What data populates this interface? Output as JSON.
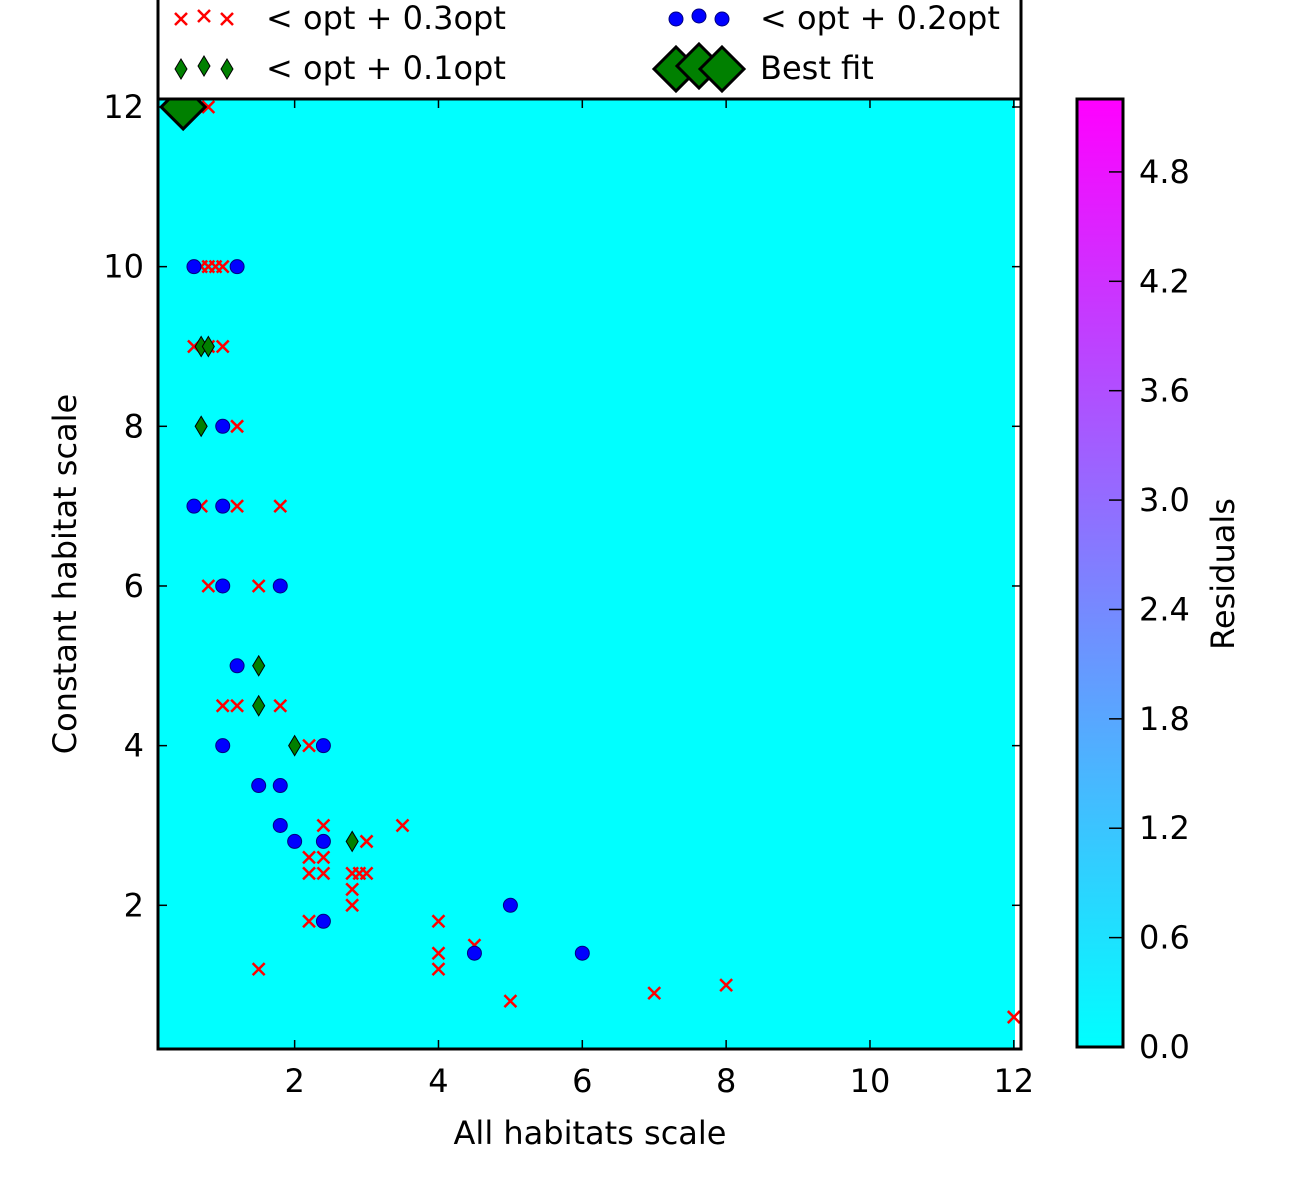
{
  "chart_data": {
    "type": "scatter",
    "title": "",
    "xlabel": "All habitats scale",
    "ylabel": "Constant habitat scale",
    "xlim": [
      0.1,
      12.1
    ],
    "ylim": [
      0.2,
      12.1
    ],
    "xticks": [
      "2",
      "4",
      "6",
      "8",
      "10",
      "12"
    ],
    "yticks": [
      "2",
      "4",
      "6",
      "8",
      "10",
      "12"
    ],
    "background_color": "#00ffff",
    "grid": false,
    "legend": {
      "placement": "top",
      "entries": [
        {
          "label": "< opt + 0.3opt",
          "marker": "x",
          "color": "#ff0000"
        },
        {
          "label": "< opt + 0.2opt",
          "marker": "circle",
          "color": "#0000ff"
        },
        {
          "label": "< opt + 0.1opt",
          "marker": "thin-diamond",
          "color": "#008000"
        },
        {
          "label": "Best fit",
          "marker": "diamond",
          "color": "#008000"
        }
      ]
    },
    "colorbar": {
      "label": "Residuals",
      "range": [
        0.0,
        5.2
      ],
      "ticks": [
        "0.0",
        "0.6",
        "1.2",
        "1.8",
        "2.4",
        "3.0",
        "3.6",
        "4.2",
        "4.8"
      ],
      "colormap": [
        "#00ffff",
        "#ff00ff"
      ]
    },
    "series": [
      {
        "name": "< opt + 0.3opt",
        "marker": "x",
        "color": "#ff0000",
        "x": [
          0.35,
          0.8,
          0.7,
          0.8,
          0.9,
          1.0,
          0.6,
          1.0,
          0.8,
          1.2,
          0.7,
          1.2,
          1.8,
          0.8,
          1.5,
          1.0,
          1.2,
          1.8,
          2.2,
          2.4,
          2.2,
          2.4,
          2.2,
          2.4,
          2.8,
          2.9,
          3.0,
          2.8,
          2.8,
          3.0,
          3.5,
          2.2,
          4.0,
          4.0,
          4.0,
          4.5,
          1.5,
          5.0,
          7.0,
          8.0,
          12.0
        ],
        "y": [
          12.0,
          12.0,
          10.0,
          10.0,
          10.0,
          10.0,
          9.0,
          9.0,
          9.0,
          8.0,
          7.0,
          7.0,
          7.0,
          6.0,
          6.0,
          4.5,
          4.5,
          4.5,
          4.0,
          3.0,
          2.6,
          2.6,
          2.4,
          2.4,
          2.4,
          2.4,
          2.8,
          2.2,
          2.0,
          2.4,
          3.0,
          1.8,
          1.8,
          1.4,
          1.2,
          1.5,
          1.2,
          0.8,
          0.9,
          1.0,
          0.6
        ]
      },
      {
        "name": "< opt + 0.2opt",
        "marker": "circle",
        "color": "#0000ff",
        "x": [
          0.6,
          1.2,
          1.0,
          0.6,
          1.0,
          1.0,
          1.8,
          1.2,
          1.0,
          2.4,
          1.5,
          1.8,
          1.8,
          2.0,
          2.4,
          2.4,
          5.0,
          4.5,
          6.0
        ],
        "y": [
          10.0,
          10.0,
          8.0,
          7.0,
          7.0,
          6.0,
          6.0,
          5.0,
          4.0,
          4.0,
          3.5,
          3.5,
          3.0,
          2.8,
          2.8,
          1.8,
          2.0,
          1.4,
          1.4
        ]
      },
      {
        "name": "< opt + 0.1opt",
        "marker": "thin-diamond",
        "color": "#008000",
        "x": [
          0.7,
          0.8,
          0.7,
          1.5,
          1.5,
          2.0,
          2.8
        ],
        "y": [
          9.0,
          9.0,
          8.0,
          5.0,
          4.5,
          4.0,
          2.8
        ]
      },
      {
        "name": "Best fit",
        "marker": "diamond",
        "color": "#008000",
        "x": [
          0.45
        ],
        "y": [
          12.0
        ]
      }
    ]
  }
}
